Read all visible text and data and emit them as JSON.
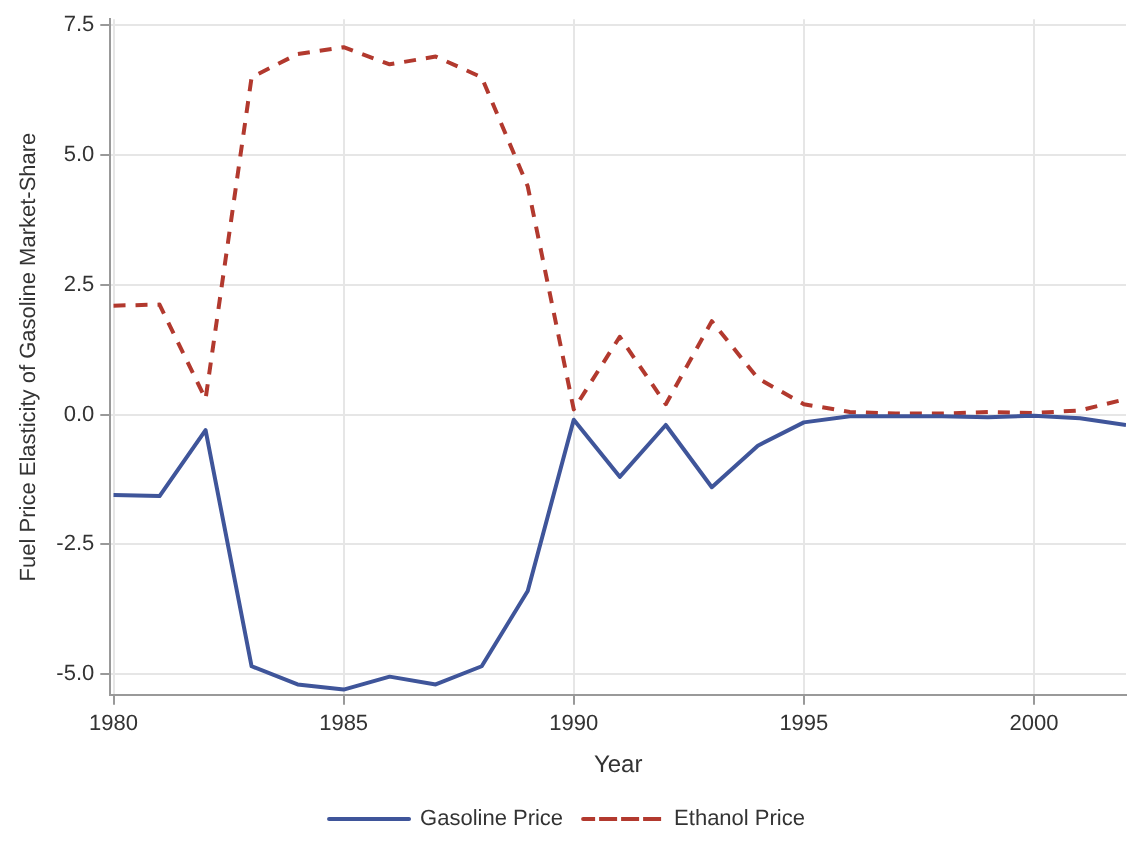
{
  "chart_data": {
    "type": "line",
    "xlabel": "Year",
    "ylabel": "Fuel Price Elasticity of Gasoline Market-Share",
    "x": [
      1980,
      1981,
      1982,
      1983,
      1984,
      1985,
      1986,
      1987,
      1988,
      1989,
      1990,
      1991,
      1992,
      1993,
      1994,
      1995,
      1996,
      1997,
      1998,
      1999,
      2000,
      2001,
      2002
    ],
    "series": [
      {
        "name": "Gasoline Price",
        "color": "#3f559a",
        "line_style": "solid",
        "values": [
          -1.55,
          -1.57,
          -0.3,
          -4.85,
          -5.2,
          -5.3,
          -5.05,
          -5.2,
          -4.85,
          -3.4,
          -0.1,
          -1.2,
          -0.2,
          -1.4,
          -0.6,
          -0.15,
          -0.03,
          -0.03,
          -0.03,
          -0.05,
          -0.02,
          -0.07,
          -0.2
        ]
      },
      {
        "name": "Ethanol Price",
        "color": "#b2392e",
        "line_style": "dashed",
        "values": [
          2.1,
          2.12,
          0.3,
          6.5,
          6.95,
          7.08,
          6.75,
          6.9,
          6.5,
          4.4,
          0.1,
          1.5,
          0.2,
          1.8,
          0.7,
          0.2,
          0.05,
          0.02,
          0.02,
          0.05,
          0.03,
          0.08,
          0.3
        ]
      }
    ],
    "xlim": [
      1979.93,
      2002
    ],
    "xticks": [
      1980,
      {
        "value": 1985,
        "label": "1985"
      },
      1990,
      1995,
      2000
    ],
    "ylim": [
      -5.4,
      7.62
    ],
    "yticks": [
      {
        "value": -5,
        "label": "-5.0"
      },
      {
        "value": -2.5,
        "label": "-2.5"
      },
      {
        "value": 0,
        "label": "0.0"
      },
      {
        "value": 2.5,
        "label": "2.5"
      },
      {
        "value": 5,
        "label": "5.0"
      },
      {
        "value": 7.5,
        "label": "7.5"
      }
    ],
    "grid": true,
    "legend": "bottom",
    "marker": "none"
  }
}
